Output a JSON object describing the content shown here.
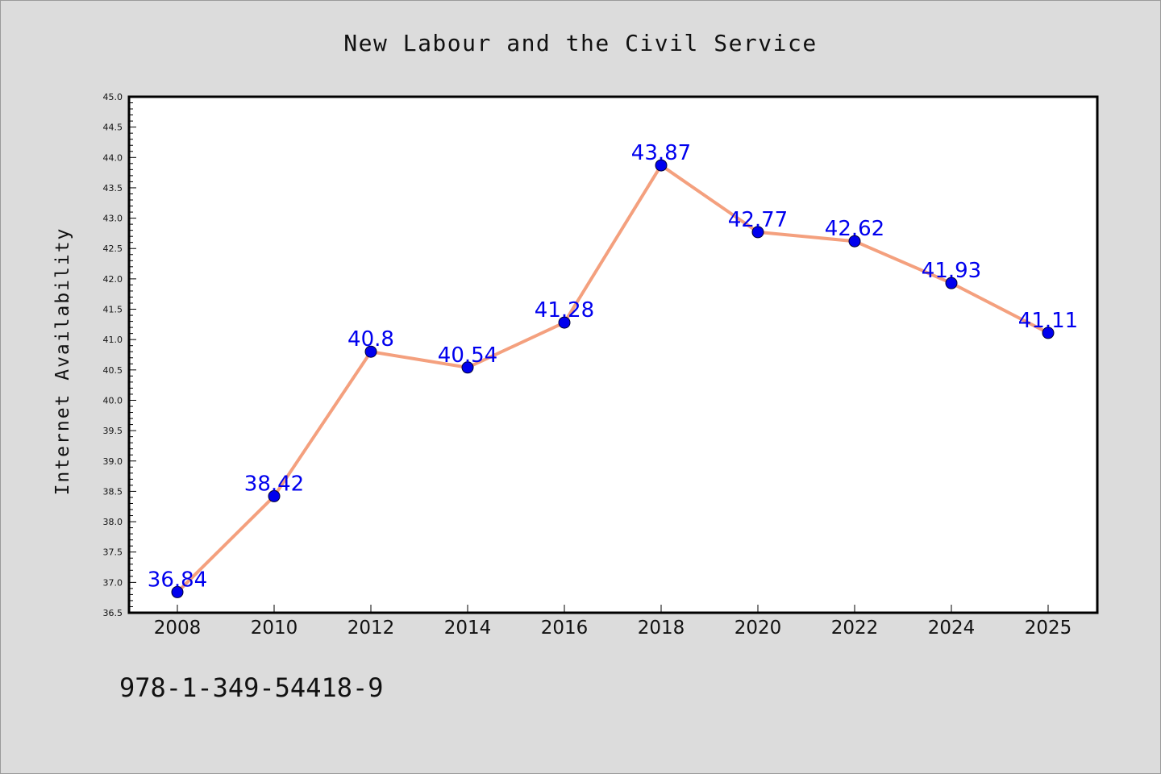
{
  "chart_data": {
    "type": "line",
    "title": "New Labour and the Civil Service",
    "xlabel": "",
    "ylabel": "Internet Availability",
    "categories": [
      "2008",
      "2010",
      "2012",
      "2014",
      "2016",
      "2018",
      "2020",
      "2022",
      "2024",
      "2025"
    ],
    "series": [
      {
        "values": [
          36.84,
          38.42,
          40.8,
          40.54,
          41.28,
          43.87,
          42.77,
          42.62,
          41.93,
          41.11
        ],
        "data_labels": [
          "36.84",
          "38.42",
          "40.8",
          "40.54",
          "41.28",
          "43.87",
          "42.77",
          "42.62",
          "41.93",
          "41.11"
        ]
      }
    ],
    "ylim": [
      36.5,
      45.0
    ],
    "y_ticks": [
      "36.5",
      "37.0",
      "37.5",
      "38.0",
      "38.5",
      "39.0",
      "39.5",
      "40.0",
      "40.5",
      "41.0",
      "41.5",
      "42.0",
      "42.5",
      "43.0",
      "43.5",
      "44.0",
      "44.5",
      "45.0"
    ],
    "grid": false,
    "legend": "none",
    "annotation": "978-1-349-54418-9",
    "colors": {
      "background": "#dcdcdc",
      "plot_background": "#ffffff",
      "line": "#f4a07e",
      "marker": "#0000ee",
      "data_label": "#0000ee",
      "text": "#111111"
    }
  }
}
